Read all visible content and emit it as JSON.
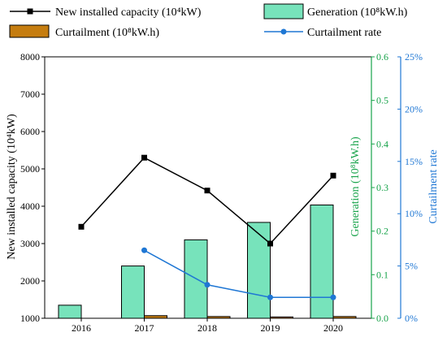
{
  "colors": {
    "capacity_line": "#000000",
    "generation_fill": "#77e3bb",
    "curtailment_fill": "#c57d10",
    "rate_line": "#1f77d4",
    "green_axis": "#17a34a",
    "blue_axis": "#1f77d4"
  },
  "chart_data": {
    "type": "bar",
    "categories": [
      "2016",
      "2017",
      "2018",
      "2019",
      "2020"
    ],
    "series": [
      {
        "key": "capacity",
        "name": "New installed capacity (10⁴kW)",
        "kind": "line",
        "axis": "left",
        "values": [
          3450,
          5300,
          4420,
          3000,
          4820
        ]
      },
      {
        "key": "generation",
        "name": "Generation (10⁸kW.h)",
        "kind": "bar",
        "axis": "right1",
        "values": [
          0.03,
          0.12,
          0.18,
          0.22,
          0.26
        ]
      },
      {
        "key": "curtailment",
        "name": "Curtailment (10⁸kW.h)",
        "kind": "bar",
        "axis": "right1",
        "values": [
          0.0,
          0.006,
          0.004,
          0.003,
          0.004
        ]
      },
      {
        "key": "rate",
        "name": "Curtailment rate",
        "kind": "line",
        "axis": "right2",
        "values": [
          null,
          0.065,
          0.032,
          0.02,
          0.02
        ]
      }
    ],
    "axes": {
      "left": {
        "label": "New installed capacity (10⁴kW)",
        "min": 1000,
        "max": 8000,
        "ticks": [
          "1000",
          "2000",
          "3000",
          "4000",
          "5000",
          "6000",
          "7000",
          "8000"
        ]
      },
      "right1": {
        "label": "Generation (10⁸kW.h)",
        "min": 0.0,
        "max": 0.6,
        "ticks": [
          "0.0",
          "0.1",
          "0.2",
          "0.3",
          "0.4",
          "0.5",
          "0.6"
        ]
      },
      "right2": {
        "label": "Curtailment rate",
        "min": 0,
        "max": 0.25,
        "ticks": [
          "0%",
          "5%",
          "10%",
          "15%",
          "20%",
          "25%"
        ]
      }
    },
    "legend_position": "top"
  }
}
